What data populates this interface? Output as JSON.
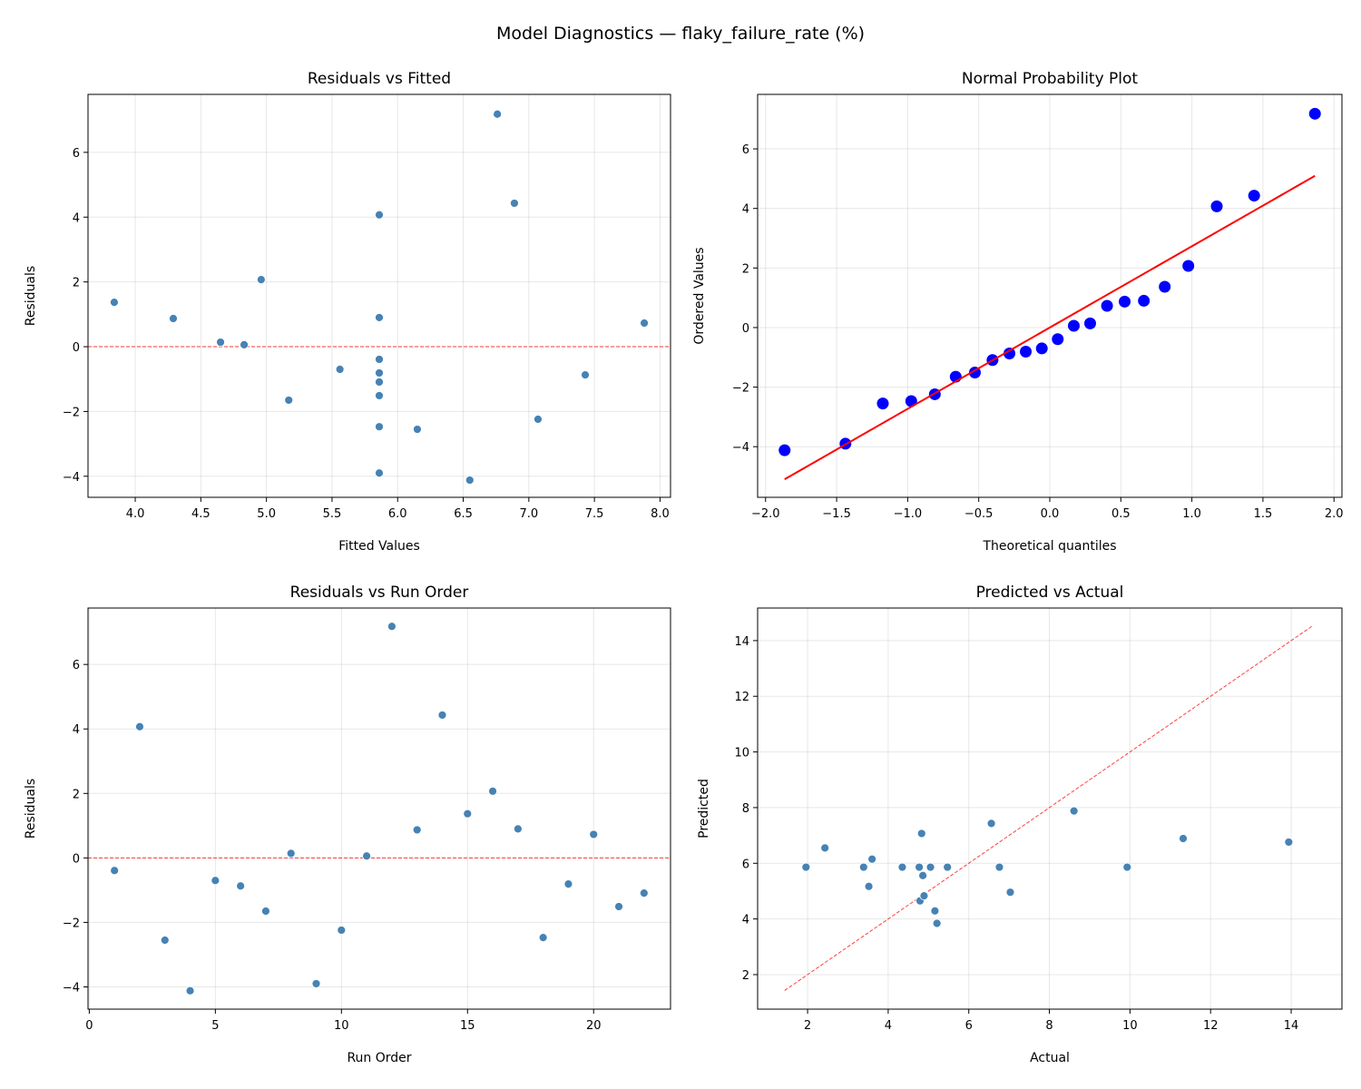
{
  "suptitle": "Model Diagnostics — flaky_failure_rate (%)",
  "colors": {
    "points": "#4682b4",
    "prob_points": "#0000ff",
    "fit_line": "#ff0000",
    "reference_line": "#ff0000",
    "grid": "#b0b0b0"
  },
  "chart_data": [
    {
      "type": "scatter",
      "title": "Residuals vs Fitted",
      "xlabel": "Fitted Values",
      "ylabel": "Residuals",
      "xlim": [
        3.64,
        8.08
      ],
      "ylim": [
        -4.65,
        7.79
      ],
      "xticks": [
        4.0,
        4.5,
        5.0,
        5.5,
        6.0,
        6.5,
        7.0,
        7.5,
        8.0
      ],
      "xtick_labels": [
        "4.0",
        "4.5",
        "5.0",
        "5.5",
        "6.0",
        "6.5",
        "7.0",
        "7.5",
        "8.0"
      ],
      "yticks": [
        -4,
        -2,
        0,
        2,
        4,
        6
      ],
      "ytick_labels": [
        "−4",
        "−2",
        "0",
        "2",
        "4",
        "6"
      ],
      "grid": true,
      "hline": 0,
      "x": [
        5.86,
        5.86,
        6.15,
        6.55,
        5.56,
        7.43,
        5.17,
        4.65,
        5.86,
        7.07,
        4.83,
        6.76,
        4.29,
        6.89,
        3.84,
        4.96,
        5.86,
        5.86,
        5.86,
        7.88,
        5.86,
        5.86
      ],
      "y": [
        -0.39,
        4.07,
        -2.55,
        -4.12,
        -0.7,
        -0.87,
        -1.65,
        0.14,
        -3.9,
        -2.24,
        0.06,
        7.18,
        0.87,
        4.43,
        1.37,
        2.07,
        0.9,
        -2.47,
        -0.81,
        0.73,
        -1.51,
        -1.09
      ]
    },
    {
      "type": "scatter",
      "title": "Normal Probability Plot",
      "xlabel": "Theoretical quantiles",
      "ylabel": "Ordered Values",
      "xlim": [
        -2.056,
        2.056
      ],
      "ylim": [
        -5.7,
        7.83
      ],
      "xticks": [
        -2.0,
        -1.5,
        -1.0,
        -0.5,
        0.0,
        0.5,
        1.0,
        1.5,
        2.0
      ],
      "xtick_labels": [
        "−2.0",
        "−1.5",
        "−1.0",
        "−0.5",
        "0.0",
        "0.5",
        "1.0",
        "1.5",
        "2.0"
      ],
      "yticks": [
        -4,
        -2,
        0,
        2,
        4,
        6
      ],
      "ytick_labels": [
        "−4",
        "−2",
        "0",
        "2",
        "4",
        "6"
      ],
      "grid": true,
      "x": [
        -1.866,
        -1.438,
        -1.175,
        -0.975,
        -0.809,
        -0.662,
        -0.527,
        -0.403,
        -0.284,
        -0.169,
        -0.056,
        0.056,
        0.169,
        0.284,
        0.403,
        0.527,
        0.662,
        0.809,
        0.975,
        1.175,
        1.438,
        1.866
      ],
      "y": [
        -4.12,
        -3.9,
        -2.55,
        -2.47,
        -2.24,
        -1.65,
        -1.51,
        -1.09,
        -0.87,
        -0.81,
        -0.7,
        -0.39,
        0.06,
        0.14,
        0.73,
        0.87,
        0.9,
        1.37,
        2.07,
        4.07,
        4.43,
        7.18
      ],
      "fit_line": {
        "slope": 2.73,
        "intercept": 0.0,
        "x_range": [
          -1.866,
          1.866
        ]
      }
    },
    {
      "type": "scatter",
      "title": "Residuals vs Run Order",
      "xlabel": "Run Order",
      "ylabel": "Residuals",
      "xlim": [
        -0.05,
        23.05
      ],
      "ylim": [
        -4.69,
        7.75
      ],
      "xticks": [
        0,
        5,
        10,
        15,
        20
      ],
      "xtick_labels": [
        "0",
        "5",
        "10",
        "15",
        "20"
      ],
      "yticks": [
        -4,
        -2,
        0,
        2,
        4,
        6
      ],
      "ytick_labels": [
        "−4",
        "−2",
        "0",
        "2",
        "4",
        "6"
      ],
      "grid": true,
      "hline": 0,
      "x": [
        1,
        2,
        3,
        4,
        5,
        6,
        7,
        8,
        9,
        10,
        11,
        12,
        13,
        14,
        15,
        16,
        17,
        18,
        19,
        20,
        21,
        22
      ],
      "y": [
        -0.39,
        4.07,
        -2.55,
        -4.12,
        -0.7,
        -0.87,
        -1.65,
        0.14,
        -3.9,
        -2.24,
        0.06,
        7.18,
        0.87,
        4.43,
        1.37,
        2.07,
        0.9,
        -2.47,
        -0.81,
        0.73,
        -1.51,
        -1.09
      ]
    },
    {
      "type": "scatter",
      "title": "Predicted vs Actual",
      "xlabel": "Actual",
      "ylabel": "Predicted",
      "xlim": [
        0.76,
        15.26
      ],
      "ylim": [
        0.76,
        15.17
      ],
      "xticks": [
        2,
        4,
        6,
        8,
        10,
        12,
        14
      ],
      "xtick_labels": [
        "2",
        "4",
        "6",
        "8",
        "10",
        "12",
        "14"
      ],
      "yticks": [
        2,
        4,
        6,
        8,
        10,
        12,
        14
      ],
      "ytick_labels": [
        "2",
        "4",
        "6",
        "8",
        "10",
        "12",
        "14"
      ],
      "grid": true,
      "identity_line": [
        1.43,
        14.55
      ],
      "x": [
        5.47,
        9.93,
        3.6,
        2.43,
        4.86,
        6.56,
        3.52,
        4.79,
        1.96,
        4.83,
        4.89,
        13.94,
        5.16,
        11.32,
        5.21,
        7.03,
        6.76,
        3.39,
        5.05,
        8.61,
        4.35,
        4.77
      ],
      "y": [
        5.86,
        5.86,
        6.15,
        6.55,
        5.56,
        7.43,
        5.17,
        4.65,
        5.86,
        7.07,
        4.83,
        6.76,
        4.29,
        6.89,
        3.84,
        4.96,
        5.86,
        5.86,
        5.86,
        7.88,
        5.86,
        5.86
      ]
    }
  ]
}
